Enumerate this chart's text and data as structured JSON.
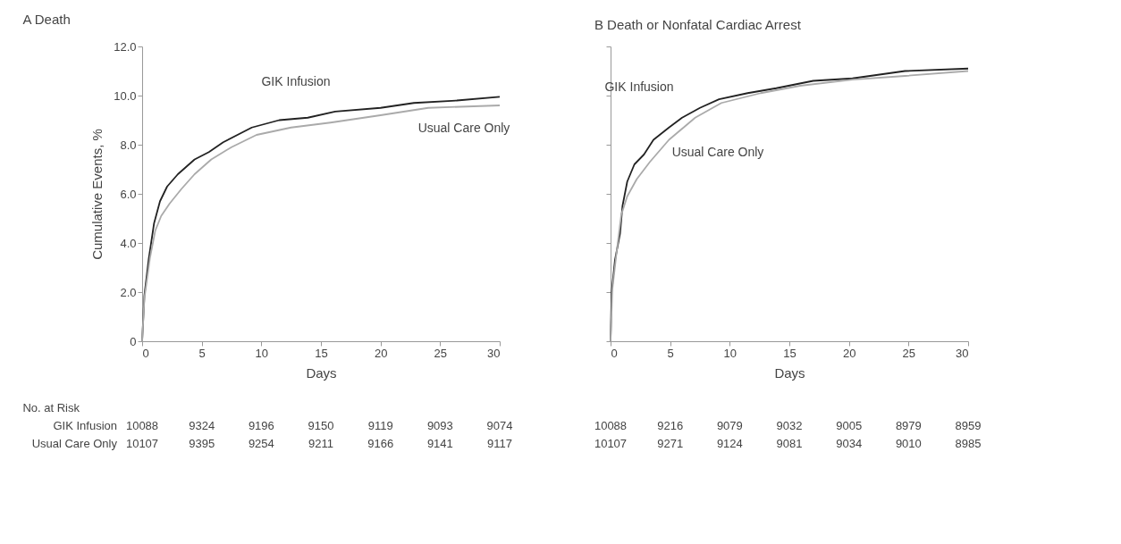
{
  "chart_data": [
    {
      "type": "line",
      "title": "A Death",
      "xlabel": "Days",
      "ylabel": "Cumulative Events, %",
      "xlim": [
        0,
        30
      ],
      "xticks": [
        0,
        5,
        10,
        15,
        20,
        25,
        30
      ],
      "ylim": [
        0,
        12
      ],
      "yticks": [
        0,
        {
          "value": 2,
          "label": "2.0"
        },
        {
          "value": 4,
          "label": "4.0"
        },
        {
          "value": 6,
          "label": "6.0"
        },
        {
          "value": 8,
          "label": "8.0"
        },
        {
          "value": 10,
          "label": "10.0"
        },
        {
          "value": 12,
          "label": "12.0"
        }
      ],
      "grid": false,
      "legend": false,
      "series": [
        {
          "name": "GIK Infusion",
          "color": "#222222",
          "x": [
            0,
            0.19,
            0.54,
            1.0,
            1.5,
            2.1,
            3.0,
            4.4,
            5.6,
            6.8,
            9.2,
            11.5,
            13.9,
            16.2,
            20,
            22.8,
            26.4,
            30
          ],
          "values": [
            0,
            1.87,
            3.3,
            4.8,
            5.7,
            6.3,
            6.8,
            7.4,
            7.7,
            8.1,
            8.7,
            9.0,
            9.1,
            9.35,
            9.5,
            9.7,
            9.8,
            9.95
          ]
        },
        {
          "name": "Usual Care Only",
          "color": "#aaaaaa",
          "x": [
            0,
            0.19,
            0.66,
            1.1,
            1.6,
            2.3,
            3.3,
            4.4,
            5.8,
            7.5,
            9.6,
            12.5,
            15.8,
            20,
            24,
            30
          ],
          "values": [
            0,
            1.75,
            3.4,
            4.5,
            5.1,
            5.6,
            6.2,
            6.8,
            7.4,
            7.9,
            8.4,
            8.7,
            8.9,
            9.2,
            9.5,
            9.6
          ]
        }
      ],
      "annotations": [
        "No. at Risk",
        "GIK Infusion",
        "Usual Care Only",
        "10088 9324 9196 9150 9119 9093 9074",
        "10107 9395 9254 9211 9166 9141 9117"
      ]
    },
    {
      "type": "line",
      "title": "B Death or Nonfatal Cardiac Arrest",
      "xlabel": "Days",
      "xlim": [
        0,
        30
      ],
      "xticks": [
        0,
        5,
        10,
        15,
        20,
        25,
        30
      ],
      "ylim": [
        0,
        12
      ],
      "yticks": [
        0,
        2,
        4,
        6,
        8,
        10,
        12
      ],
      "tick_labels": "x",
      "grid": false,
      "legend": false,
      "series": [
        {
          "name": "GIK Infusion",
          "color": "#222222",
          "x": [
            0,
            0.09,
            0.37,
            0.8,
            1.0,
            1.4,
            2.0,
            2.8,
            3.6,
            4.9,
            6.0,
            7.5,
            9.1,
            11.5,
            13.9,
            17,
            20.3,
            24.7,
            30
          ],
          "values": [
            0,
            2.0,
            3.3,
            4.4,
            5.5,
            6.5,
            7.2,
            7.6,
            8.2,
            8.7,
            9.1,
            9.5,
            9.85,
            10.1,
            10.3,
            10.6,
            10.7,
            11.0,
            11.1
          ]
        },
        {
          "name": "Usual Care Only",
          "color": "#aaaaaa",
          "x": [
            0,
            0.15,
            0.5,
            0.9,
            1.4,
            2.2,
            3.3,
            4.9,
            7.1,
            9.3,
            12.6,
            15.9,
            20.3,
            24.7,
            30
          ],
          "values": [
            0,
            2.1,
            3.6,
            5.15,
            5.9,
            6.6,
            7.3,
            8.2,
            9.1,
            9.7,
            10.1,
            10.4,
            10.65,
            10.8,
            11.0
          ]
        }
      ],
      "annotations": [
        "10088 9216 9079 9032 9005 8979 8959",
        "10107 9271 9124 9081 9034 9010 8985"
      ]
    }
  ]
}
